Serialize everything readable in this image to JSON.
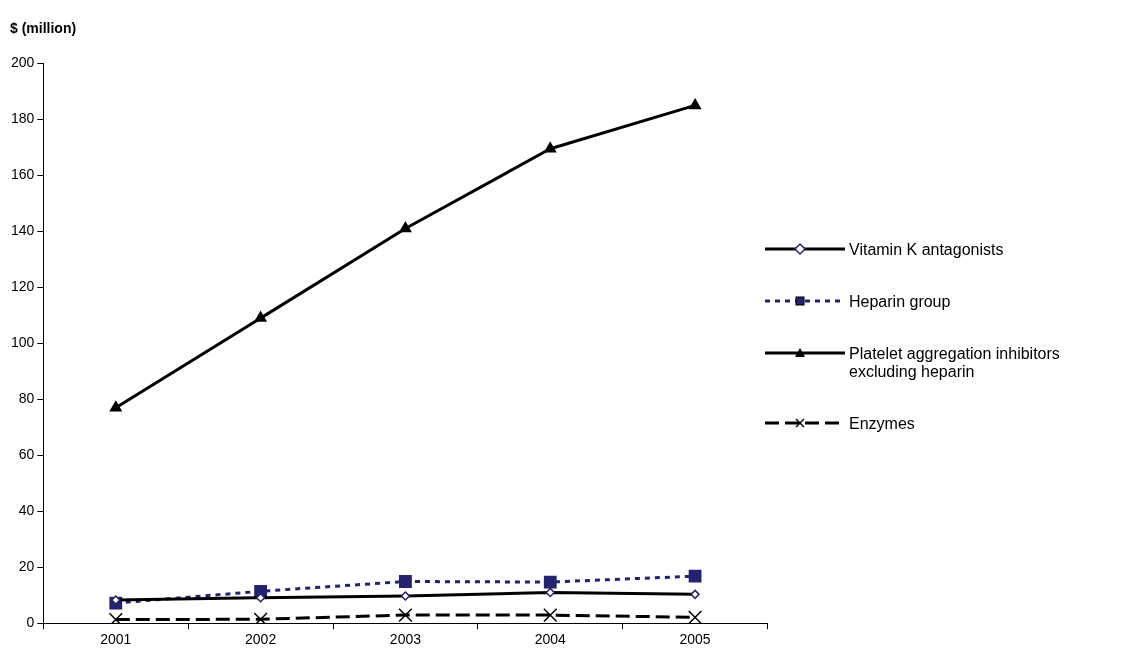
{
  "chart_data": {
    "type": "line",
    "ylabel": "$ (million)",
    "categories": [
      "2001",
      "2002",
      "2003",
      "2004",
      "2005"
    ],
    "series": [
      {
        "name": "Vitamin K antagonists",
        "color": "#000000",
        "marker": "diamond",
        "line_style": "solid",
        "values": [
          8.3,
          9.1,
          9.7,
          11,
          10.3
        ]
      },
      {
        "name": "Heparin group",
        "color": "#232370",
        "marker": "square",
        "line_style": "dotted",
        "values": [
          7.2,
          11.4,
          14.9,
          14.7,
          16.8
        ]
      },
      {
        "name": "Platelet aggregation inhibitors excluding heparin",
        "color": "#000000",
        "marker": "triangle",
        "line_style": "solid",
        "values": [
          77,
          109,
          141,
          169.5,
          185
        ]
      },
      {
        "name": "Enzymes",
        "color": "#000000",
        "marker": "cross",
        "line_style": "dashed",
        "values": [
          1.3,
          1.4,
          2.9,
          2.9,
          2.1
        ]
      }
    ],
    "ylim": [
      0,
      200
    ],
    "yticks": [
      0,
      20,
      40,
      60,
      80,
      100,
      120,
      140,
      160,
      180,
      200
    ],
    "grid": false,
    "legend": "right"
  }
}
